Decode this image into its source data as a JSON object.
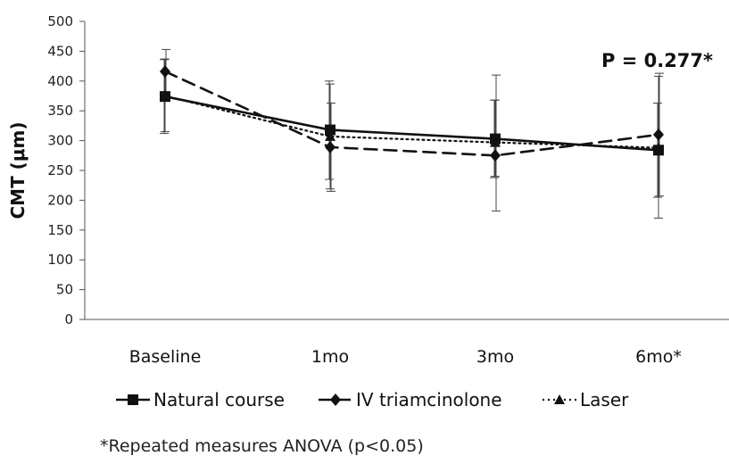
{
  "chart_data": {
    "type": "line",
    "ylabel": "CMT (μm)",
    "ylim": [
      0,
      500
    ],
    "yticks": [
      0,
      50,
      100,
      150,
      200,
      250,
      300,
      350,
      400,
      450,
      500
    ],
    "categories": [
      "Baseline",
      "1mo",
      "3mo",
      "6mo*"
    ],
    "annotation": "P = 0.277*",
    "footnote": "*Repeated measures ANOVA (p<0.05)",
    "legend_position": "bottom",
    "grid": false,
    "series": [
      {
        "name": "Natural course",
        "marker": "square",
        "dash": "solid",
        "values": [
          374,
          318,
          303,
          284
        ],
        "err_low": [
          312,
          235,
          238,
          205
        ],
        "err_high": [
          436,
          400,
          368,
          363
        ]
      },
      {
        "name": "IV triamcinolone",
        "marker": "diamond",
        "dash": "dashed",
        "values": [
          416,
          289,
          275,
          310
        ],
        "err_low": [
          379,
          215,
          182,
          207
        ],
        "err_high": [
          453,
          363,
          410,
          413
        ]
      },
      {
        "name": "Laser",
        "marker": "triangle",
        "dash": "dotted",
        "values": [
          375,
          307,
          297,
          288
        ],
        "err_low": [
          315,
          219,
          240,
          170
        ],
        "err_high": [
          437,
          395,
          368,
          408
        ]
      }
    ]
  }
}
